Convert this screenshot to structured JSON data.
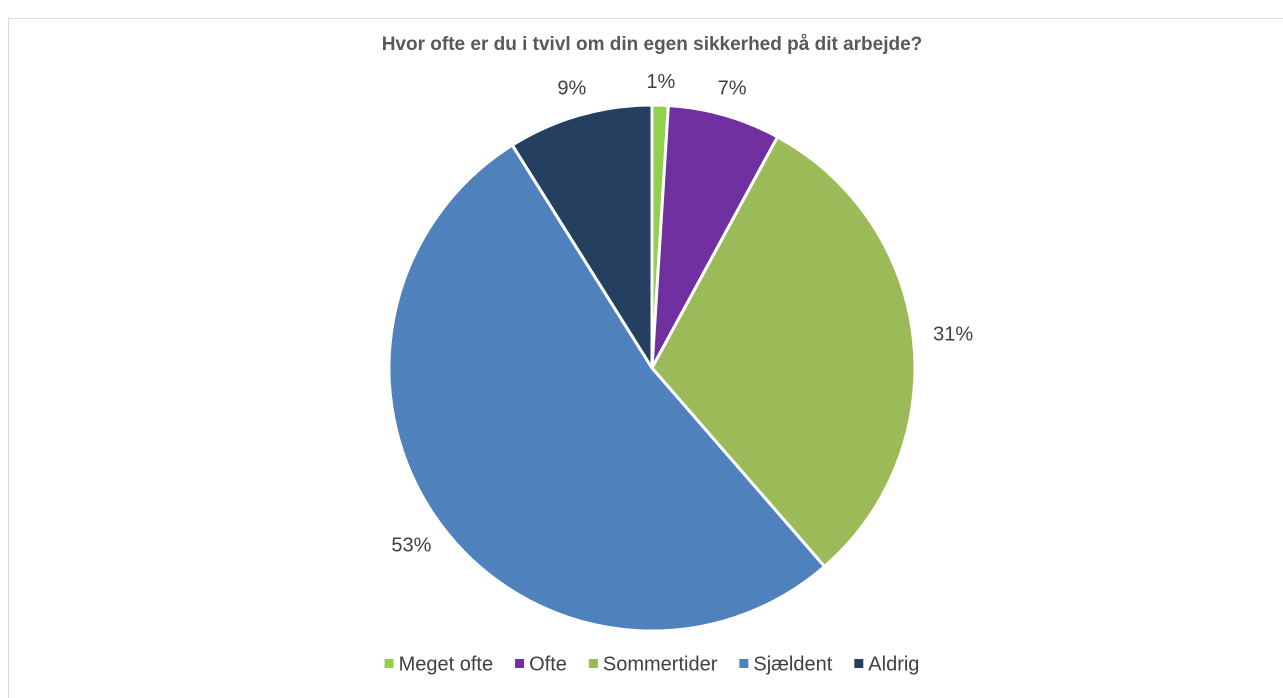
{
  "chart_data": {
    "type": "pie",
    "title": "Hvor ofte er du i tvivl om din egen sikkerhed på dit arbejde?",
    "categories": [
      "Meget ofte",
      "Ofte",
      "Sommertider",
      "Sjældent",
      "Aldrig"
    ],
    "values": [
      1,
      7,
      31,
      53,
      9
    ],
    "value_labels": [
      "1%",
      "7%",
      "31%",
      "53%",
      "9%"
    ],
    "colors": [
      "#92d050",
      "#7030a0",
      "#9bbb59",
      "#4f81bd",
      "#243f60"
    ],
    "legend": "bottom"
  }
}
